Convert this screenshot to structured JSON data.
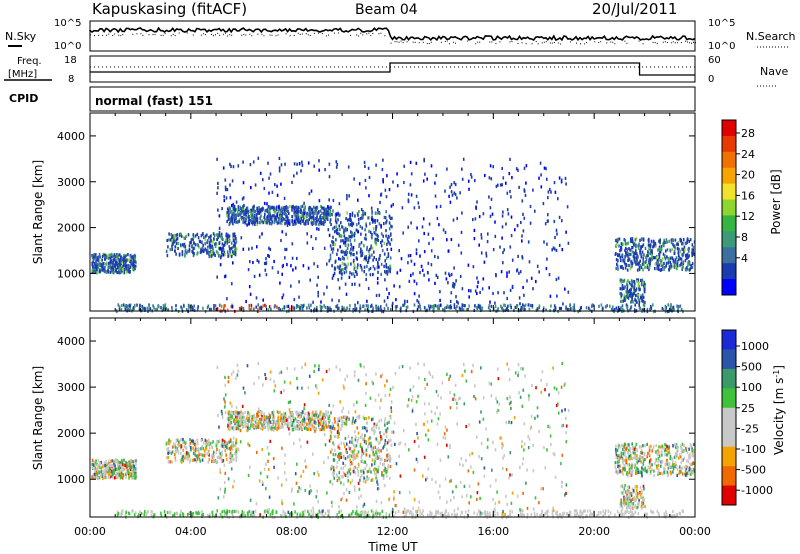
{
  "header": {
    "station": "Kapuskasing (fitACF)",
    "beam": "Beam 04",
    "date": "20/Jul/2011"
  },
  "noise_panel": {
    "left_label": "N.Sky",
    "right_label": "N.Search",
    "left_ticks": [
      "10^5",
      "10^0"
    ],
    "right_ticks": [
      "10^5",
      "10^0"
    ]
  },
  "freq_panel": {
    "left_label_line1": "Freq.",
    "left_label_line2": "[MHz]",
    "right_label": "Nave",
    "left_ticks": [
      "18",
      "8"
    ],
    "right_ticks": [
      "60",
      "0"
    ]
  },
  "cpid": {
    "label": "CPID",
    "value": "normal (fast) 151"
  },
  "colors": {
    "power": [
      "#0000ff",
      "#1c3bb0",
      "#3b6fa0",
      "#3d9a78",
      "#34b442",
      "#8ed62e",
      "#f2e22a",
      "#f6a500",
      "#f07000",
      "#e83a00",
      "#e00000"
    ],
    "velocity": [
      "#e00000",
      "#f06a00",
      "#f5a300",
      "#c8c8c8",
      "#c8c8c8",
      "#3ec23a",
      "#3a9a6a",
      "#2a55a8",
      "#1a2ad8"
    ]
  },
  "chart_data": [
    {
      "type": "heatmap",
      "title": "Power",
      "ylabel": "Slant Range [km]",
      "xlabel": "Time UT",
      "x_ticks": [
        "00:00",
        "04:00",
        "08:00",
        "12:00",
        "16:00",
        "20:00",
        "00:00"
      ],
      "y_ticks": [
        1000,
        2000,
        3000,
        4000
      ],
      "xlim": [
        "00:00",
        "24:00"
      ],
      "ylim": [
        180,
        4500
      ],
      "colorbar": {
        "label": "Power [dB]",
        "range": [
          0,
          30
        ],
        "ticks": [
          "28",
          "24",
          "20",
          "16",
          "12",
          "8",
          "4"
        ]
      }
    },
    {
      "type": "heatmap",
      "title": "Velocity",
      "ylabel": "Slant Range [km]",
      "xlabel": "Time UT",
      "x_ticks": [
        "00:00",
        "04:00",
        "08:00",
        "12:00",
        "16:00",
        "20:00",
        "00:00"
      ],
      "y_ticks": [
        1000,
        2000,
        3000,
        4000
      ],
      "xlim": [
        "00:00",
        "24:00"
      ],
      "ylim": [
        180,
        4500
      ],
      "colorbar": {
        "label": "Velocity [m s^-1]",
        "ticks": [
          "1000",
          "500",
          "100",
          "25",
          "-25",
          "-100",
          "-500",
          "-1000"
        ]
      }
    }
  ]
}
